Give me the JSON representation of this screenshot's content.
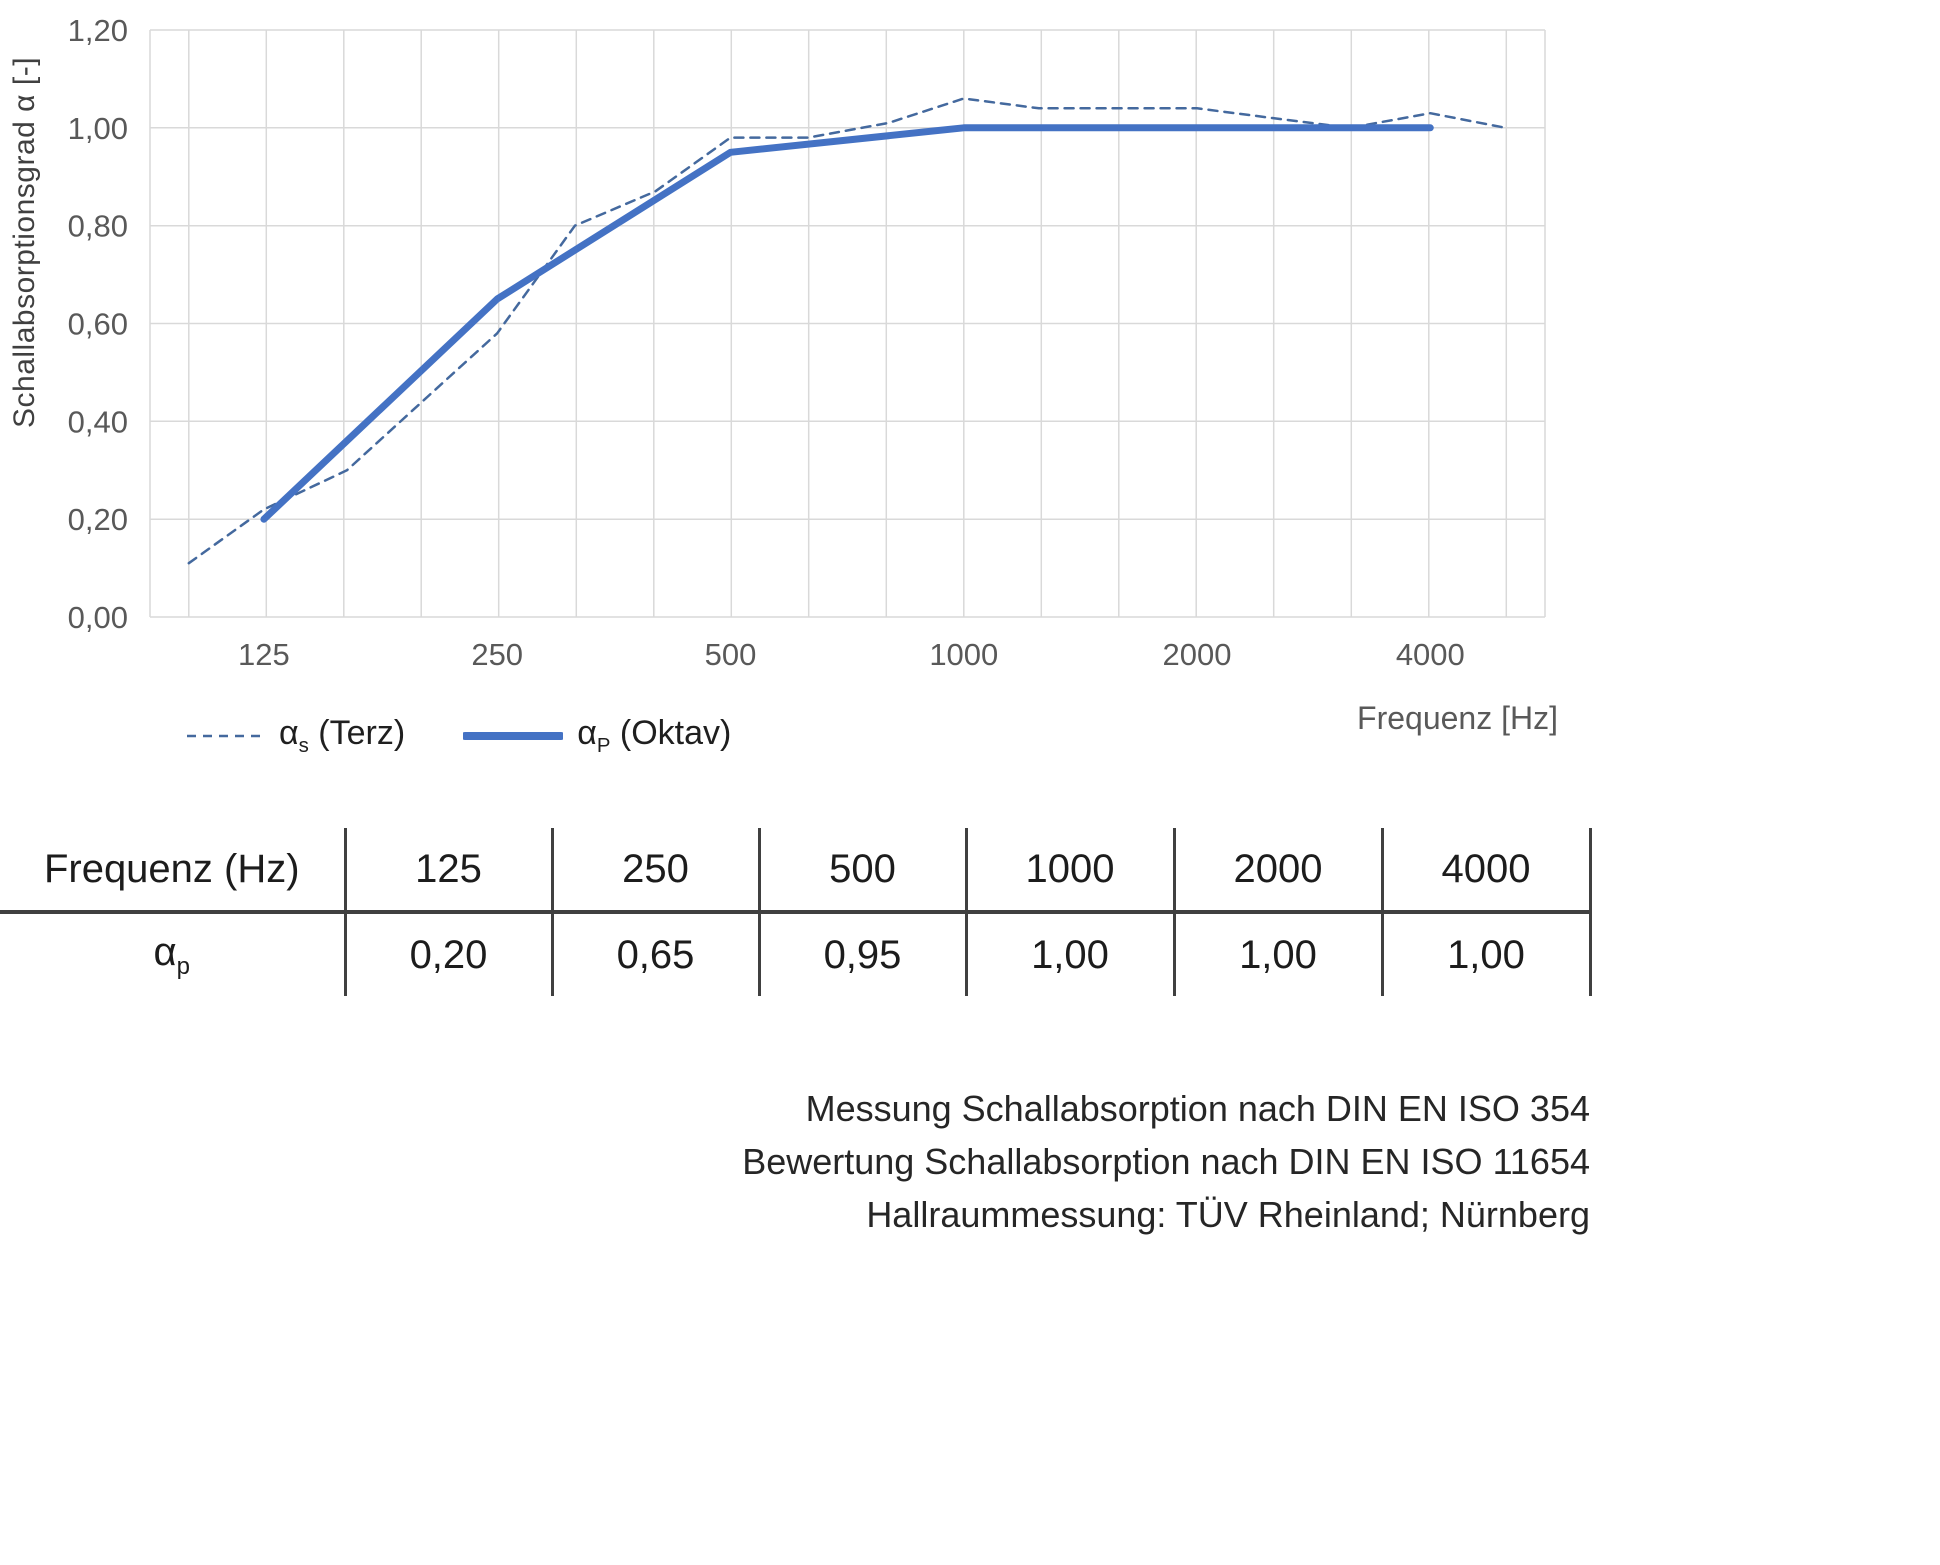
{
  "chart": {
    "y_axis_title": "Schallabsorptionsgrad α [-]",
    "x_axis_title": "Frequenz [Hz]",
    "y_ticks": [
      "1,20",
      "1,00",
      "0,80",
      "0,60",
      "0,40",
      "0,20",
      "0,00"
    ],
    "x_ticks": [
      "125",
      "250",
      "500",
      "1000",
      "2000",
      "4000"
    ]
  },
  "chart_data": {
    "type": "line",
    "x_scale": "log",
    "title": "",
    "xlabel": "Frequenz [Hz]",
    "ylabel": "Schallabsorptionsgrad α [-]",
    "ylim": [
      0,
      1.2
    ],
    "x_range_hz": [
      89,
      5600
    ],
    "grid": "on",
    "legend_position": "bottom-left",
    "grid_color": "#d9d9d9",
    "series": [
      {
        "name": "αs (Terz)",
        "line_style": "dashed",
        "color": "#44699E",
        "width": 2.5,
        "x": [
          100,
          125,
          160,
          200,
          250,
          315,
          400,
          500,
          630,
          800,
          1000,
          1250,
          1600,
          2000,
          2500,
          3150,
          4000,
          5000
        ],
        "values": [
          0.11,
          0.22,
          0.3,
          0.44,
          0.58,
          0.8,
          0.87,
          0.98,
          0.98,
          1.01,
          1.06,
          1.04,
          1.04,
          1.04,
          1.02,
          1.0,
          1.03,
          1.0
        ]
      },
      {
        "name": "αp (Oktav)",
        "line_style": "solid",
        "color": "#4472C4",
        "width": 7,
        "x": [
          125,
          250,
          500,
          1000,
          2000,
          4000
        ],
        "values": [
          0.2,
          0.65,
          0.95,
          1.0,
          1.0,
          1.0
        ]
      }
    ]
  },
  "legend": {
    "terz": {
      "symbol": "α",
      "subscript": "s",
      "label": " (Terz)"
    },
    "oktav": {
      "symbol": "α",
      "subscript": "P",
      "label": " (Oktav)"
    }
  },
  "table": {
    "header_label": "Frequenz (Hz)",
    "frequencies": [
      "125",
      "250",
      "500",
      "1000",
      "2000",
      "4000"
    ],
    "row_symbol": "α",
    "row_subscript": "p",
    "values": [
      "0,20",
      "0,65",
      "0,95",
      "1,00",
      "1,00",
      "1,00"
    ]
  },
  "footer": {
    "lines": [
      "Messung Schallabsorption nach DIN EN ISO 354",
      "Bewertung Schallabsorption nach DIN EN ISO 11654",
      "Hallraummessung: TÜV Rheinland; Nürnberg"
    ]
  }
}
